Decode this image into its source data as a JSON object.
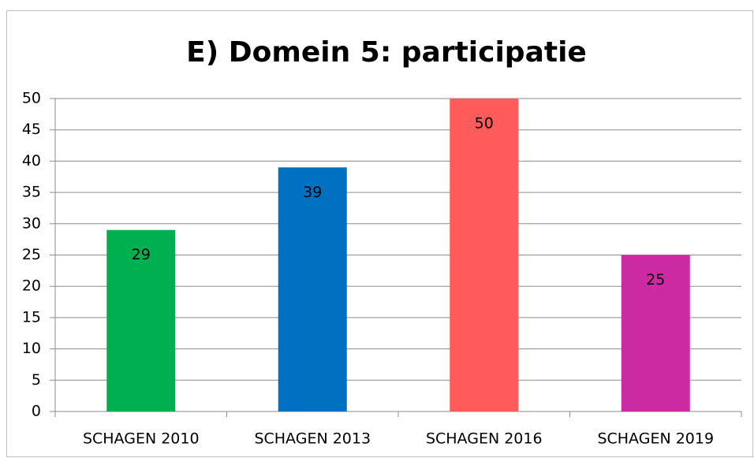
{
  "chart_data": {
    "type": "bar",
    "title": "E) Domein 5: participatie",
    "categories": [
      "SCHAGEN 2010",
      "SCHAGEN 2013",
      "SCHAGEN 2016",
      "SCHAGEN 2019"
    ],
    "values": [
      29,
      39,
      50,
      25
    ],
    "colors": [
      "#00b050",
      "#0070c0",
      "#ff5b5b",
      "#cc2aa2"
    ],
    "ylim": [
      0,
      50
    ],
    "yticks": [
      0,
      5,
      10,
      15,
      20,
      25,
      30,
      35,
      40,
      45,
      50
    ],
    "grid": true
  }
}
